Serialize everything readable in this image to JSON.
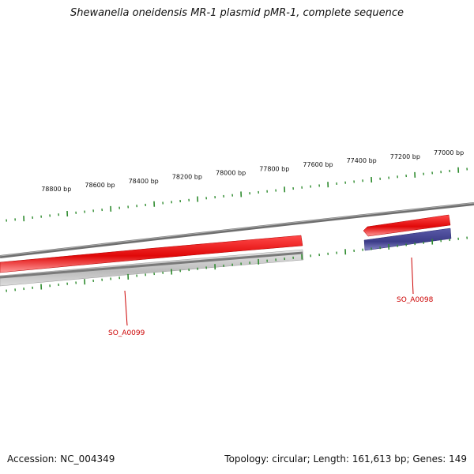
{
  "header": {
    "title": "Shewanella oneidensis MR-1 plasmid pMR-1, complete sequence"
  },
  "footer": {
    "accession": "Accession: NC_004349",
    "summary": "Topology: circular; Length: 161,613 bp; Genes: 149"
  },
  "map": {
    "tick_labels": [
      "77000 bp",
      "77200 bp",
      "77400 bp",
      "77600 bp",
      "77800 bp",
      "78000 bp",
      "78200 bp",
      "78400 bp",
      "78600 bp",
      "78800 bp"
    ],
    "genes": [
      {
        "name": "SO_A0098",
        "color": "#dd1111"
      },
      {
        "name": "SO_A0099",
        "color": "#dd1111"
      }
    ],
    "colors": {
      "backbone": "#7a7a7a",
      "gene_red": "#e01010",
      "cds_grey": "#c4c4c4",
      "cds_blue": "#4a4a9a",
      "tick_green": "#2e8b2e",
      "label_red": "#cc0000"
    }
  }
}
